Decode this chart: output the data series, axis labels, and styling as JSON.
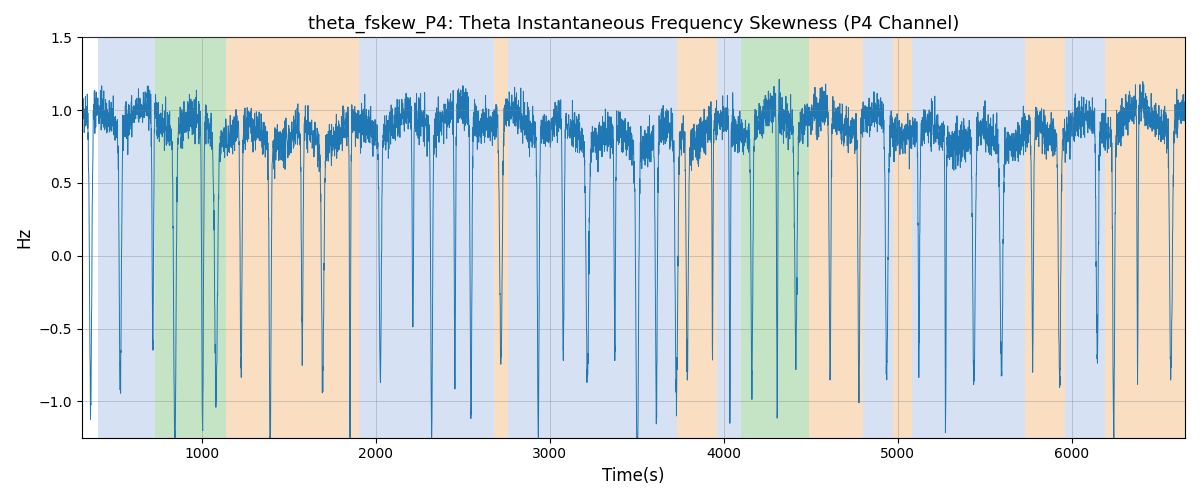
{
  "title": "theta_fskew_P4: Theta Instantaneous Frequency Skewness (P4 Channel)",
  "xlabel": "Time(s)",
  "ylabel": "Hz",
  "xlim": [
    310,
    6650
  ],
  "ylim": [
    -1.25,
    1.5
  ],
  "yticks": [
    -1.0,
    -0.5,
    0.0,
    0.5,
    1.0,
    1.5
  ],
  "xticks": [
    1000,
    2000,
    3000,
    4000,
    5000,
    6000
  ],
  "line_color": "#1f77b4",
  "line_width": 0.7,
  "bg_regions": [
    {
      "xmin": 400,
      "xmax": 730,
      "color": "#aec6e8",
      "alpha": 0.5
    },
    {
      "xmin": 730,
      "xmax": 1140,
      "color": "#8dc88d",
      "alpha": 0.5
    },
    {
      "xmin": 1140,
      "xmax": 1900,
      "color": "#f5c89a",
      "alpha": 0.6
    },
    {
      "xmin": 1900,
      "xmax": 2680,
      "color": "#aec6e8",
      "alpha": 0.5
    },
    {
      "xmin": 2680,
      "xmax": 2760,
      "color": "#f5c89a",
      "alpha": 0.6
    },
    {
      "xmin": 2760,
      "xmax": 3730,
      "color": "#aec6e8",
      "alpha": 0.5
    },
    {
      "xmin": 3730,
      "xmax": 3960,
      "color": "#f5c89a",
      "alpha": 0.6
    },
    {
      "xmin": 3960,
      "xmax": 4100,
      "color": "#aec6e8",
      "alpha": 0.5
    },
    {
      "xmin": 4100,
      "xmax": 4490,
      "color": "#8dc88d",
      "alpha": 0.5
    },
    {
      "xmin": 4490,
      "xmax": 4800,
      "color": "#f5c89a",
      "alpha": 0.6
    },
    {
      "xmin": 4800,
      "xmax": 4970,
      "color": "#aec6e8",
      "alpha": 0.5
    },
    {
      "xmin": 4970,
      "xmax": 5080,
      "color": "#f5c89a",
      "alpha": 0.6
    },
    {
      "xmin": 5080,
      "xmax": 5730,
      "color": "#aec6e8",
      "alpha": 0.5
    },
    {
      "xmin": 5730,
      "xmax": 5960,
      "color": "#f5c89a",
      "alpha": 0.6
    },
    {
      "xmin": 5960,
      "xmax": 6190,
      "color": "#aec6e8",
      "alpha": 0.5
    },
    {
      "xmin": 6190,
      "xmax": 6650,
      "color": "#f5c89a",
      "alpha": 0.6
    }
  ],
  "seed": 42,
  "n_points": 6300,
  "t_start": 310,
  "t_end": 6650
}
